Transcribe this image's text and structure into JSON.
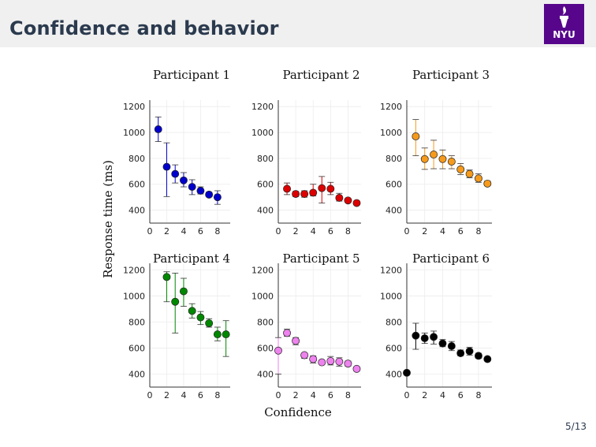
{
  "slide": {
    "title": "Confidence and behavior",
    "logo_text": "NYU",
    "page_number": "5/13"
  },
  "colors": {
    "title_bar": "#f0f0f0",
    "title_text": "#2b3a4e",
    "logo_bg": "#57068c"
  },
  "chart_data": {
    "type": "scatter",
    "ylabel": "Response time (ms)",
    "xlabel": "Confidence",
    "xlim": [
      0,
      9.5
    ],
    "ylim": [
      300,
      1250
    ],
    "xticks": [
      0,
      2,
      4,
      6,
      8
    ],
    "yticks": [
      400,
      600,
      800,
      1000,
      1200
    ],
    "grid": true,
    "panels": [
      {
        "title": "Participant 1",
        "color": "#0000cc",
        "x": [
          1,
          2,
          3,
          4,
          5,
          6,
          7,
          8
        ],
        "y": [
          1025,
          735,
          680,
          630,
          580,
          550,
          520,
          500
        ],
        "err_low": [
          930,
          505,
          610,
          580,
          520,
          525,
          505,
          445
        ],
        "err_high": [
          1120,
          920,
          750,
          690,
          635,
          580,
          540,
          550
        ]
      },
      {
        "title": "Participant 2",
        "color": "#dd0000",
        "x": [
          1,
          2,
          3,
          4,
          5,
          6,
          7,
          8,
          9
        ],
        "y": [
          565,
          525,
          525,
          535,
          570,
          565,
          495,
          475,
          455
        ],
        "err_low": [
          520,
          505,
          500,
          510,
          455,
          520,
          470,
          460,
          440
        ],
        "err_high": [
          610,
          545,
          550,
          600,
          660,
          615,
          530,
          490,
          470
        ]
      },
      {
        "title": "Participant 3",
        "color": "#f59a1b",
        "x": [
          1,
          2,
          3,
          4,
          5,
          6,
          7,
          8,
          9
        ],
        "y": [
          970,
          795,
          830,
          795,
          775,
          715,
          680,
          645,
          605
        ],
        "err_low": [
          820,
          715,
          720,
          720,
          720,
          675,
          650,
          615,
          590
        ],
        "err_high": [
          1100,
          880,
          940,
          865,
          820,
          760,
          710,
          680,
          625
        ]
      },
      {
        "title": "Participant 4",
        "color": "#008800",
        "x": [
          2,
          3,
          4,
          5,
          6,
          7,
          8,
          9
        ],
        "y": [
          1145,
          955,
          1035,
          885,
          835,
          790,
          705,
          705
        ],
        "err_low": [
          955,
          715,
          920,
          830,
          780,
          760,
          655,
          535
        ],
        "err_high": [
          1185,
          1175,
          1135,
          940,
          880,
          825,
          760,
          810
        ]
      },
      {
        "title": "Participant 5",
        "color": "#ee82ee",
        "x": [
          0,
          1,
          2,
          3,
          4,
          5,
          6,
          7,
          8,
          9
        ],
        "y": [
          580,
          715,
          655,
          545,
          515,
          490,
          500,
          495,
          480,
          440
        ],
        "err_low": [
          400,
          690,
          625,
          520,
          485,
          475,
          470,
          460,
          460,
          430
        ],
        "err_high": [
          680,
          745,
          680,
          560,
          540,
          505,
          535,
          525,
          500,
          455
        ]
      },
      {
        "title": "Participant 6",
        "color": "#000000",
        "x": [
          0,
          1,
          2,
          3,
          4,
          5,
          6,
          7,
          8,
          9
        ],
        "y": [
          410,
          695,
          675,
          685,
          635,
          615,
          560,
          575,
          540,
          515
        ],
        "err_low": [
          400,
          590,
          635,
          630,
          610,
          580,
          540,
          545,
          520,
          500
        ],
        "err_high": [
          420,
          790,
          715,
          730,
          665,
          650,
          585,
          605,
          560,
          530
        ]
      }
    ]
  }
}
